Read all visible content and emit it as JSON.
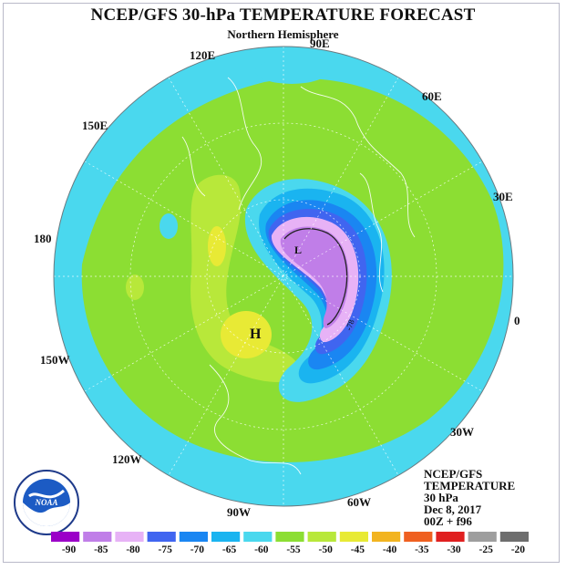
{
  "title": "NCEP/GFS 30-hPa TEMPERATURE FORECAST",
  "subtitle": "Northern Hemisphere",
  "longitude_labels": [
    "90E",
    "120E",
    "60E",
    "150E",
    "30E",
    "180",
    "0",
    "150W",
    "30W",
    "120W",
    "60W",
    "90W"
  ],
  "info": {
    "line1": "NCEP/GFS",
    "line2": "TEMPERATURE",
    "line3": "30 hPa",
    "date": "Dec 8, 2017",
    "run": "00Z + f96"
  },
  "markers": {
    "low": "L",
    "high": "H",
    "contour_label": "-78"
  },
  "logo_text": "NOAA",
  "colorbar": {
    "ticks": [
      "-90",
      "-85",
      "-80",
      "-75",
      "-70",
      "-65",
      "-60",
      "-55",
      "-50",
      "-45",
      "-40",
      "-35",
      "-30",
      "-25",
      "-20"
    ],
    "colors": [
      "#9b00c8",
      "#c07ee8",
      "#e7b2f6",
      "#4065f0",
      "#1a86f2",
      "#1ab4f0",
      "#4ad8ee",
      "#8cde33",
      "#b8e83a",
      "#e8ea35",
      "#f2b420",
      "#ef6020",
      "#e02020",
      "#9e9e9e",
      "#6e6e6e"
    ]
  }
}
